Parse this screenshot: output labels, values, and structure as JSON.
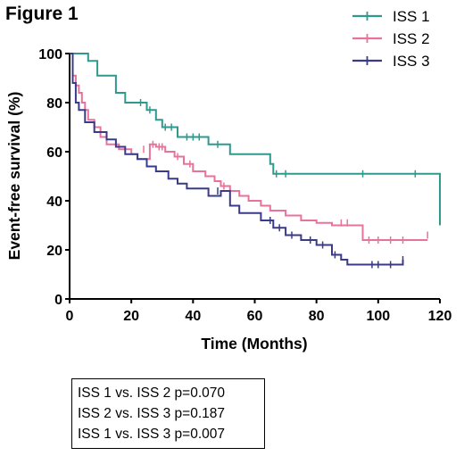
{
  "figure": {
    "title": "Figure 1",
    "stats": [
      "ISS 1 vs. ISS 2 p=0.070",
      "ISS 2 vs. ISS 3 p=0.187",
      "ISS 1 vs. ISS 3 p=0.007"
    ]
  },
  "chart_data": {
    "type": "line",
    "step": true,
    "xlabel": "Time (Months)",
    "ylabel": "Event-free survival (%)",
    "xlim": [
      0,
      120
    ],
    "ylim": [
      0,
      100
    ],
    "xticks": [
      0,
      20,
      40,
      60,
      80,
      100,
      120
    ],
    "yticks": [
      0,
      20,
      40,
      60,
      80,
      100
    ],
    "grid": false,
    "legend_position": "top-right",
    "series": [
      {
        "name": "ISS 1",
        "color": "#2e9a8e",
        "points": [
          [
            0,
            100
          ],
          [
            6,
            97
          ],
          [
            9,
            91
          ],
          [
            15,
            84
          ],
          [
            18,
            80
          ],
          [
            25,
            77
          ],
          [
            28,
            73
          ],
          [
            30,
            70
          ],
          [
            35,
            66
          ],
          [
            45,
            63
          ],
          [
            52,
            59
          ],
          [
            65,
            55
          ],
          [
            66,
            51
          ],
          [
            120,
            30
          ]
        ],
        "censored": [
          [
            23,
            80
          ],
          [
            26,
            77
          ],
          [
            31,
            70
          ],
          [
            33,
            70
          ],
          [
            38,
            66
          ],
          [
            40,
            66
          ],
          [
            42,
            66
          ],
          [
            48,
            63
          ],
          [
            67,
            51
          ],
          [
            70,
            51
          ],
          [
            95,
            51
          ],
          [
            112,
            51
          ]
        ]
      },
      {
        "name": "ISS 2",
        "color": "#e8739a",
        "points": [
          [
            0,
            100
          ],
          [
            1,
            91
          ],
          [
            2,
            87
          ],
          [
            3,
            84
          ],
          [
            4,
            80
          ],
          [
            5,
            77
          ],
          [
            6,
            73
          ],
          [
            8,
            70
          ],
          [
            10,
            66
          ],
          [
            12,
            63
          ],
          [
            16,
            61
          ],
          [
            20,
            59
          ],
          [
            22,
            57
          ],
          [
            26,
            63
          ],
          [
            28,
            62
          ],
          [
            31,
            60
          ],
          [
            34,
            58
          ],
          [
            37,
            55
          ],
          [
            40,
            52
          ],
          [
            44,
            50
          ],
          [
            47,
            48
          ],
          [
            49,
            46
          ],
          [
            52,
            44
          ],
          [
            55,
            42
          ],
          [
            58,
            40
          ],
          [
            62,
            38
          ],
          [
            65,
            36
          ],
          [
            70,
            34
          ],
          [
            75,
            32
          ],
          [
            80,
            31
          ],
          [
            85,
            30
          ],
          [
            95,
            24
          ],
          [
            116,
            24
          ]
        ],
        "censored": [
          [
            24,
            61
          ],
          [
            27,
            63
          ],
          [
            29,
            62
          ],
          [
            30,
            62
          ],
          [
            35,
            58
          ],
          [
            39,
            55
          ],
          [
            50,
            46
          ],
          [
            88,
            31
          ],
          [
            90,
            31
          ],
          [
            97,
            24
          ],
          [
            100,
            24
          ],
          [
            104,
            24
          ],
          [
            108,
            24
          ],
          [
            116,
            26
          ]
        ]
      },
      {
        "name": "ISS 3",
        "color": "#3a3a88",
        "points": [
          [
            0,
            100
          ],
          [
            1,
            88
          ],
          [
            2,
            80
          ],
          [
            3,
            77
          ],
          [
            5,
            72
          ],
          [
            8,
            68
          ],
          [
            12,
            65
          ],
          [
            15,
            62
          ],
          [
            18,
            59
          ],
          [
            22,
            57
          ],
          [
            25,
            54
          ],
          [
            28,
            52
          ],
          [
            32,
            49
          ],
          [
            35,
            47
          ],
          [
            38,
            45
          ],
          [
            45,
            42
          ],
          [
            49,
            44
          ],
          [
            52,
            38
          ],
          [
            55,
            35
          ],
          [
            62,
            32
          ],
          [
            66,
            29
          ],
          [
            70,
            26
          ],
          [
            75,
            24
          ],
          [
            80,
            22
          ],
          [
            85,
            18
          ],
          [
            88,
            16
          ],
          [
            90,
            14
          ],
          [
            108,
            16
          ]
        ],
        "censored": [
          [
            48,
            44
          ],
          [
            65,
            32
          ],
          [
            68,
            29
          ],
          [
            72,
            26
          ],
          [
            78,
            24
          ],
          [
            82,
            22
          ],
          [
            86,
            18
          ],
          [
            98,
            14
          ],
          [
            100,
            14
          ],
          [
            104,
            14
          ],
          [
            108,
            16
          ]
        ]
      }
    ]
  }
}
